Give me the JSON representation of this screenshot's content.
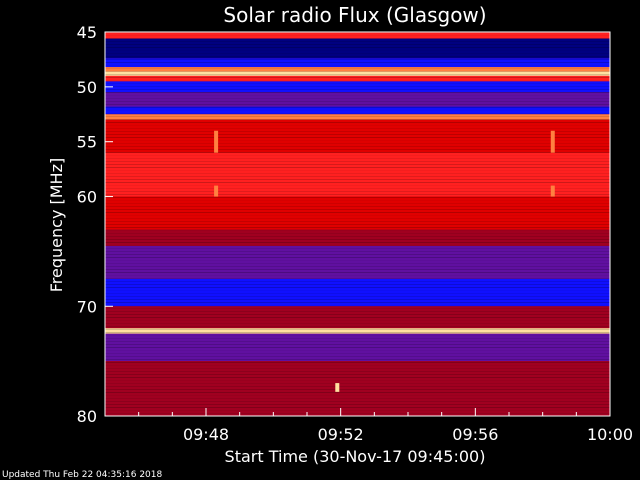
{
  "chart_data": {
    "type": "heatmap",
    "title": "Solar radio Flux (Glasgow)",
    "xlabel": "Start Time (30-Nov-17 09:45:00)",
    "ylabel": "Frequency [MHz]",
    "xlim": [
      "09:45",
      "10:00"
    ],
    "ylim": [
      45,
      80
    ],
    "x_ticks": [
      "09:48",
      "09:52",
      "09:56",
      "10:00"
    ],
    "x_tick_minutes": [
      48,
      52,
      56,
      60
    ],
    "y_ticks": [
      "45",
      "50",
      "55",
      "60",
      "70",
      "80"
    ],
    "y_tick_values": [
      45,
      50,
      55,
      60,
      70,
      80
    ],
    "colormap": [
      "#000080",
      "#1010ff",
      "#6010a0",
      "#a00020",
      "#e00000",
      "#ff2020",
      "#ff8040",
      "#ffe0a0"
    ],
    "spectrum_bands": [
      {
        "f_start": 45.0,
        "f_end": 45.6,
        "level": 5
      },
      {
        "f_start": 45.6,
        "f_end": 47.4,
        "level": 0
      },
      {
        "f_start": 47.4,
        "f_end": 48.2,
        "level": 1
      },
      {
        "f_start": 48.2,
        "f_end": 48.6,
        "level": 6
      },
      {
        "f_start": 48.6,
        "f_end": 49.0,
        "level": 7
      },
      {
        "f_start": 49.0,
        "f_end": 49.5,
        "level": 5
      },
      {
        "f_start": 49.5,
        "f_end": 50.5,
        "level": 1
      },
      {
        "f_start": 50.5,
        "f_end": 51.8,
        "level": 2
      },
      {
        "f_start": 51.8,
        "f_end": 52.5,
        "level": 1
      },
      {
        "f_start": 52.5,
        "f_end": 53.0,
        "level": 6
      },
      {
        "f_start": 53.0,
        "f_end": 56.0,
        "level": 4
      },
      {
        "f_start": 56.0,
        "f_end": 60.0,
        "level": 5
      },
      {
        "f_start": 60.0,
        "f_end": 63.0,
        "level": 4
      },
      {
        "f_start": 63.0,
        "f_end": 64.5,
        "level": 3
      },
      {
        "f_start": 64.5,
        "f_end": 67.5,
        "level": 2
      },
      {
        "f_start": 67.5,
        "f_end": 70.0,
        "level": 1
      },
      {
        "f_start": 70.0,
        "f_end": 72.0,
        "level": 3
      },
      {
        "f_start": 72.0,
        "f_end": 72.5,
        "level": 7
      },
      {
        "f_start": 72.5,
        "f_end": 75.0,
        "level": 2
      },
      {
        "f_start": 75.0,
        "f_end": 80.0,
        "level": 3
      }
    ],
    "bursts": [
      {
        "time_min": 48.3,
        "f_start": 54.0,
        "f_end": 56.0,
        "level": 6
      },
      {
        "time_min": 48.3,
        "f_start": 59.0,
        "f_end": 60.0,
        "level": 6
      },
      {
        "time_min": 58.3,
        "f_start": 54.0,
        "f_end": 56.0,
        "level": 6
      },
      {
        "time_min": 58.3,
        "f_start": 59.0,
        "f_end": 60.0,
        "level": 6
      },
      {
        "time_min": 51.9,
        "f_start": 77.0,
        "f_end": 77.8,
        "level": 7
      }
    ],
    "grid": false
  },
  "footer": {
    "updated": "Updated Thu Feb 22 04:35:16 2018"
  }
}
